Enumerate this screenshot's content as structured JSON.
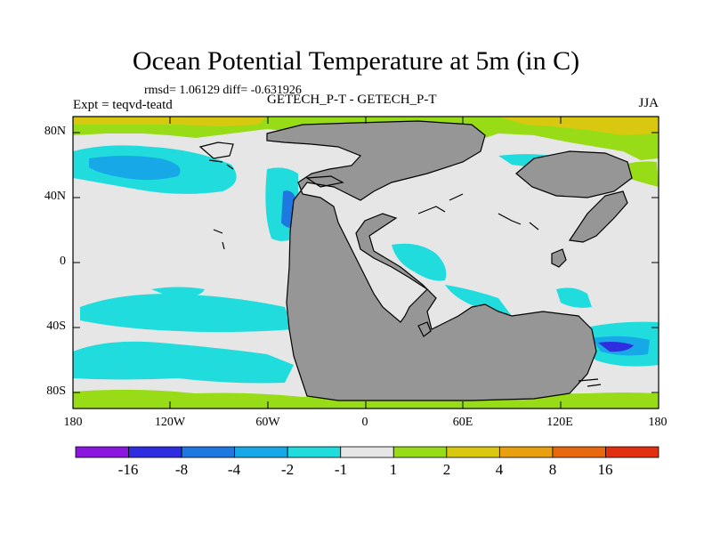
{
  "title": "Ocean Potential Temperature at 5m (in C)",
  "stats": "rmsd= 1.06129 diff= -0.631926",
  "expt_label": "Expt = teqvd-teatd",
  "experiment_name": "GETECH_P-T - GETECH_P-T",
  "season": "JJA",
  "lat_labels": [
    "80N",
    "40N",
    "0",
    "40S",
    "80S"
  ],
  "lon_labels": [
    "180",
    "120W",
    "60W",
    "0",
    "60E",
    "120E",
    "180"
  ],
  "colorbar": {
    "labels": [
      "-16",
      "-8",
      "-4",
      "-2",
      "-1",
      "1",
      "2",
      "4",
      "8",
      "16"
    ],
    "colors": [
      "#8a16e0",
      "#2e2ee0",
      "#1f78e0",
      "#17a8e8",
      "#20dcdc",
      "#e6e6e6",
      "#98dc18",
      "#d8c810",
      "#e8a010",
      "#e86810",
      "#e03010"
    ]
  },
  "map_colors": {
    "background": "#e6e6e6",
    "land": "#969696",
    "cyan": "#20dcdc",
    "lightblue": "#17a8e8",
    "blue": "#1f78e0",
    "darkblue": "#2e2ee0",
    "green": "#98dc18",
    "yellow": "#d8c810"
  }
}
